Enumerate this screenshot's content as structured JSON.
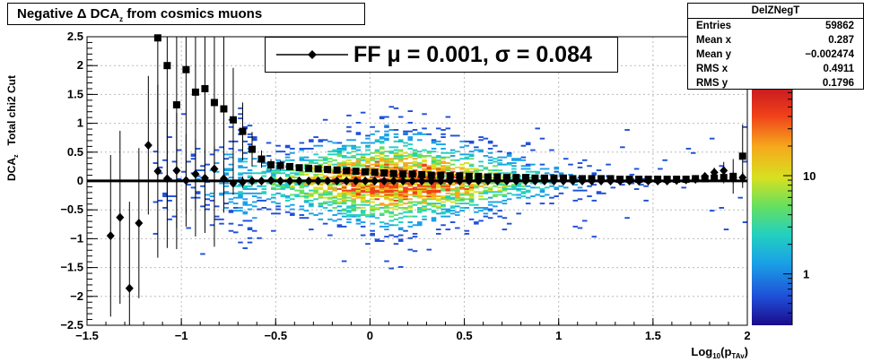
{
  "title": {
    "prefix": "Negative Δ DCA",
    "subscript": "z",
    "suffix": "from cosmics muons"
  },
  "stats": {
    "name": "DelZNegT",
    "rows": [
      {
        "label": "Entries",
        "value": "59862"
      },
      {
        "label": "Mean x",
        "value": "0.287"
      },
      {
        "label": "Mean y",
        "value": "−0.002474"
      },
      {
        "label": "RMS x",
        "value": "0.4911"
      },
      {
        "label": "RMS y",
        "value": "0.1796"
      }
    ]
  },
  "legend": {
    "text": "FF μ =  0.001, σ =   0.084"
  },
  "axis_labels": {
    "y_main": "DCA",
    "y_sub": "z",
    "y_tail": "Total chi2 Cut",
    "x_main": "Log",
    "x_sub": "10",
    "x_paren": "(p",
    "x_psub": "TAv",
    "x_close": ")"
  },
  "chart_data": {
    "type": "heatmap",
    "xlim": [
      -1.5,
      2.0
    ],
    "ylim": [
      -2.5,
      2.5
    ],
    "x_ticks": [
      -1.5,
      -1,
      -0.5,
      0,
      0.5,
      1,
      1.5,
      2
    ],
    "x_tick_labels": [
      "−1.5",
      "−1",
      "−0.5",
      "0",
      "0.5",
      "1",
      "1.5",
      "2"
    ],
    "y_ticks": [
      -2.5,
      -2,
      -1.5,
      -1,
      -0.5,
      0,
      0.5,
      1,
      1.5,
      2,
      2.5
    ],
    "y_tick_labels": [
      "−2.5",
      "−2",
      "−1.5",
      "−1",
      "−0.5",
      "0",
      "0.5",
      "1",
      "1.5",
      "2",
      "2.5"
    ],
    "colorbar": {
      "scale": "log",
      "tick_labels": [
        "1",
        "10"
      ],
      "tick_values": [
        1,
        10
      ]
    },
    "grid": true,
    "series": [
      {
        "name": "",
        "marker": "square",
        "x": [
          -1.125,
          -1.075,
          -1.025,
          -0.975,
          -0.925,
          -0.875,
          -0.825,
          -0.775,
          -0.725,
          -0.675,
          -0.625,
          -0.575,
          -0.525,
          -0.475,
          -0.425,
          -0.375,
          -0.325,
          -0.275,
          -0.225,
          -0.175,
          -0.125,
          -0.075,
          -0.025,
          0.025,
          0.075,
          0.125,
          0.175,
          0.225,
          0.275,
          0.325,
          0.375,
          0.425,
          0.475,
          0.525,
          0.575,
          0.625,
          0.675,
          0.725,
          0.775,
          0.825,
          0.875,
          0.925,
          0.975,
          1.025,
          1.075,
          1.125,
          1.175,
          1.225,
          1.275,
          1.325,
          1.375,
          1.425,
          1.475,
          1.525,
          1.575,
          1.625,
          1.675,
          1.725,
          1.775,
          1.825,
          1.875,
          1.925,
          1.975
        ],
        "y": [
          2.48,
          2.0,
          1.32,
          1.93,
          1.54,
          1.6,
          1.36,
          1.25,
          1.06,
          0.86,
          0.55,
          0.38,
          0.28,
          0.27,
          0.25,
          0.23,
          0.22,
          0.21,
          0.2,
          0.19,
          0.18,
          0.17,
          0.16,
          0.15,
          0.14,
          0.13,
          0.12,
          0.12,
          0.11,
          0.1,
          0.1,
          0.09,
          0.09,
          0.08,
          0.08,
          0.07,
          0.07,
          0.06,
          0.06,
          0.06,
          0.05,
          0.05,
          0.05,
          0.05,
          0.04,
          0.04,
          0.04,
          0.04,
          0.04,
          0.03,
          0.03,
          0.03,
          0.03,
          0.03,
          0.03,
          0.03,
          0.03,
          0.04,
          0.04,
          0.05,
          0.06,
          0.08,
          0.43
        ],
        "yerr": [
          2.5,
          2.5,
          2.5,
          2.5,
          2.5,
          2.5,
          2.5,
          1.8,
          0.9,
          0.5,
          0.3,
          0.15,
          0.1,
          0.08,
          0.06,
          0.05,
          0.04,
          0.03,
          0.03,
          0.02,
          0.02,
          0.02,
          0.02,
          0.02,
          0.02,
          0.02,
          0.02,
          0.02,
          0.02,
          0.02,
          0.02,
          0.02,
          0.02,
          0.02,
          0.02,
          0.02,
          0.02,
          0.02,
          0.02,
          0.02,
          0.02,
          0.02,
          0.02,
          0.02,
          0.02,
          0.02,
          0.02,
          0.02,
          0.02,
          0.02,
          0.02,
          0.02,
          0.02,
          0.02,
          0.02,
          0.02,
          0.02,
          0.03,
          0.04,
          0.06,
          0.1,
          0.3,
          0.55
        ]
      },
      {
        "name": "FF",
        "marker": "diamond",
        "x": [
          -1.375,
          -1.325,
          -1.275,
          -1.225,
          -1.175,
          -1.125,
          -1.075,
          -1.025,
          -0.975,
          -0.925,
          -0.875,
          -0.825,
          -0.775,
          -0.725,
          -0.675,
          -0.625,
          -0.575,
          -0.525,
          -0.475,
          -0.425,
          -0.375,
          -0.325,
          -0.275,
          -0.225,
          -0.175,
          -0.125,
          -0.075,
          -0.025,
          0.025,
          0.075,
          0.125,
          0.175,
          0.225,
          0.275,
          0.325,
          0.375,
          0.425,
          0.475,
          0.525,
          0.575,
          0.625,
          0.675,
          0.725,
          0.775,
          0.825,
          0.875,
          0.925,
          0.975,
          1.025,
          1.075,
          1.125,
          1.175,
          1.225,
          1.275,
          1.325,
          1.375,
          1.425,
          1.475,
          1.525,
          1.575,
          1.625,
          1.675,
          1.725,
          1.775,
          1.825,
          1.875,
          1.925,
          1.975
        ],
        "y": [
          -0.95,
          -0.63,
          -1.86,
          -0.73,
          0.62,
          0.17,
          0.04,
          0.18,
          0.01,
          0.12,
          0.05,
          0.21,
          0.04,
          -0.04,
          -0.02,
          0.0,
          0.0,
          0.01,
          0.0,
          0.0,
          0.0,
          0.0,
          0.0,
          0.0,
          0.0,
          0.0,
          0.0,
          0.0,
          0.0,
          0.0,
          0.0,
          0.0,
          0.0,
          0.0,
          0.0,
          0.0,
          0.0,
          0.0,
          0.0,
          0.0,
          0.0,
          0.0,
          0.0,
          0.0,
          0.0,
          0.0,
          0.0,
          0.0,
          0.0,
          0.0,
          0.0,
          0.0,
          0.0,
          0.0,
          0.0,
          0.0,
          0.0,
          0.0,
          0.0,
          0.0,
          0.01,
          0.02,
          0.03,
          0.08,
          0.15,
          0.18,
          0.06,
          0.06
        ],
        "yerr": [
          1.4,
          1.5,
          1.5,
          1.3,
          1.2,
          1.5,
          1.2,
          1.0,
          0.8,
          0.6,
          0.5,
          0.4,
          0.3,
          0.2,
          0.1,
          0.08,
          0.06,
          0.04,
          0.03,
          0.02,
          0.02,
          0.02,
          0.01,
          0.01,
          0.01,
          0.01,
          0.01,
          0.01,
          0.01,
          0.01,
          0.01,
          0.01,
          0.01,
          0.01,
          0.01,
          0.01,
          0.01,
          0.01,
          0.01,
          0.01,
          0.01,
          0.01,
          0.01,
          0.01,
          0.01,
          0.01,
          0.01,
          0.01,
          0.01,
          0.01,
          0.01,
          0.01,
          0.01,
          0.01,
          0.01,
          0.01,
          0.01,
          0.01,
          0.01,
          0.01,
          0.01,
          0.02,
          0.03,
          0.05,
          0.08,
          0.15,
          0.1,
          0.1
        ]
      }
    ],
    "fit": {
      "name": "FF",
      "mu": 0.001,
      "sigma": 0.084
    }
  }
}
